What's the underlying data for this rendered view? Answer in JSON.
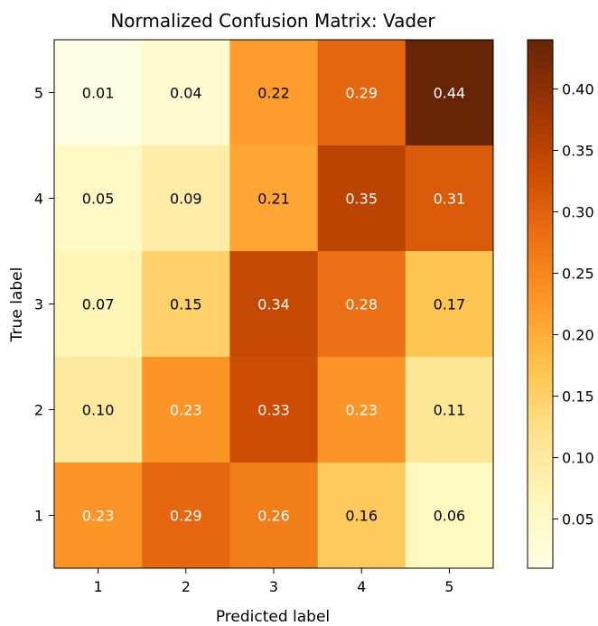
{
  "chart_data": {
    "type": "heatmap",
    "title": "Normalized Confusion Matrix: Vader",
    "xlabel": "Predicted label",
    "ylabel": "True label",
    "x_categories": [
      "1",
      "2",
      "3",
      "4",
      "5"
    ],
    "y_categories_top_to_bottom": [
      "5",
      "4",
      "3",
      "2",
      "1"
    ],
    "values_top_to_bottom": [
      [
        0.01,
        0.04,
        0.22,
        0.29,
        0.44
      ],
      [
        0.05,
        0.09,
        0.21,
        0.35,
        0.31
      ],
      [
        0.07,
        0.15,
        0.34,
        0.28,
        0.17
      ],
      [
        0.1,
        0.23,
        0.33,
        0.23,
        0.11
      ],
      [
        0.23,
        0.29,
        0.26,
        0.16,
        0.06
      ]
    ],
    "value_labels_top_to_bottom": [
      [
        "0.01",
        "0.04",
        "0.22",
        "0.29",
        "0.44"
      ],
      [
        "0.05",
        "0.09",
        "0.21",
        "0.35",
        "0.31"
      ],
      [
        "0.07",
        "0.15",
        "0.34",
        "0.28",
        "0.17"
      ],
      [
        "0.10",
        "0.23",
        "0.33",
        "0.23",
        "0.11"
      ],
      [
        "0.23",
        "0.29",
        "0.26",
        "0.16",
        "0.06"
      ]
    ],
    "colormap": "YlOrBr",
    "colorbar": {
      "range": [
        0.01,
        0.44
      ],
      "ticks": [
        0.05,
        0.1,
        0.15,
        0.2,
        0.25,
        0.3,
        0.35,
        0.4
      ],
      "tick_labels": [
        "0.05",
        "0.10",
        "0.15",
        "0.20",
        "0.25",
        "0.30",
        "0.35",
        "0.40"
      ]
    },
    "text_color_dark": "#000000",
    "text_color_light": "#ffffff",
    "grid": false
  }
}
